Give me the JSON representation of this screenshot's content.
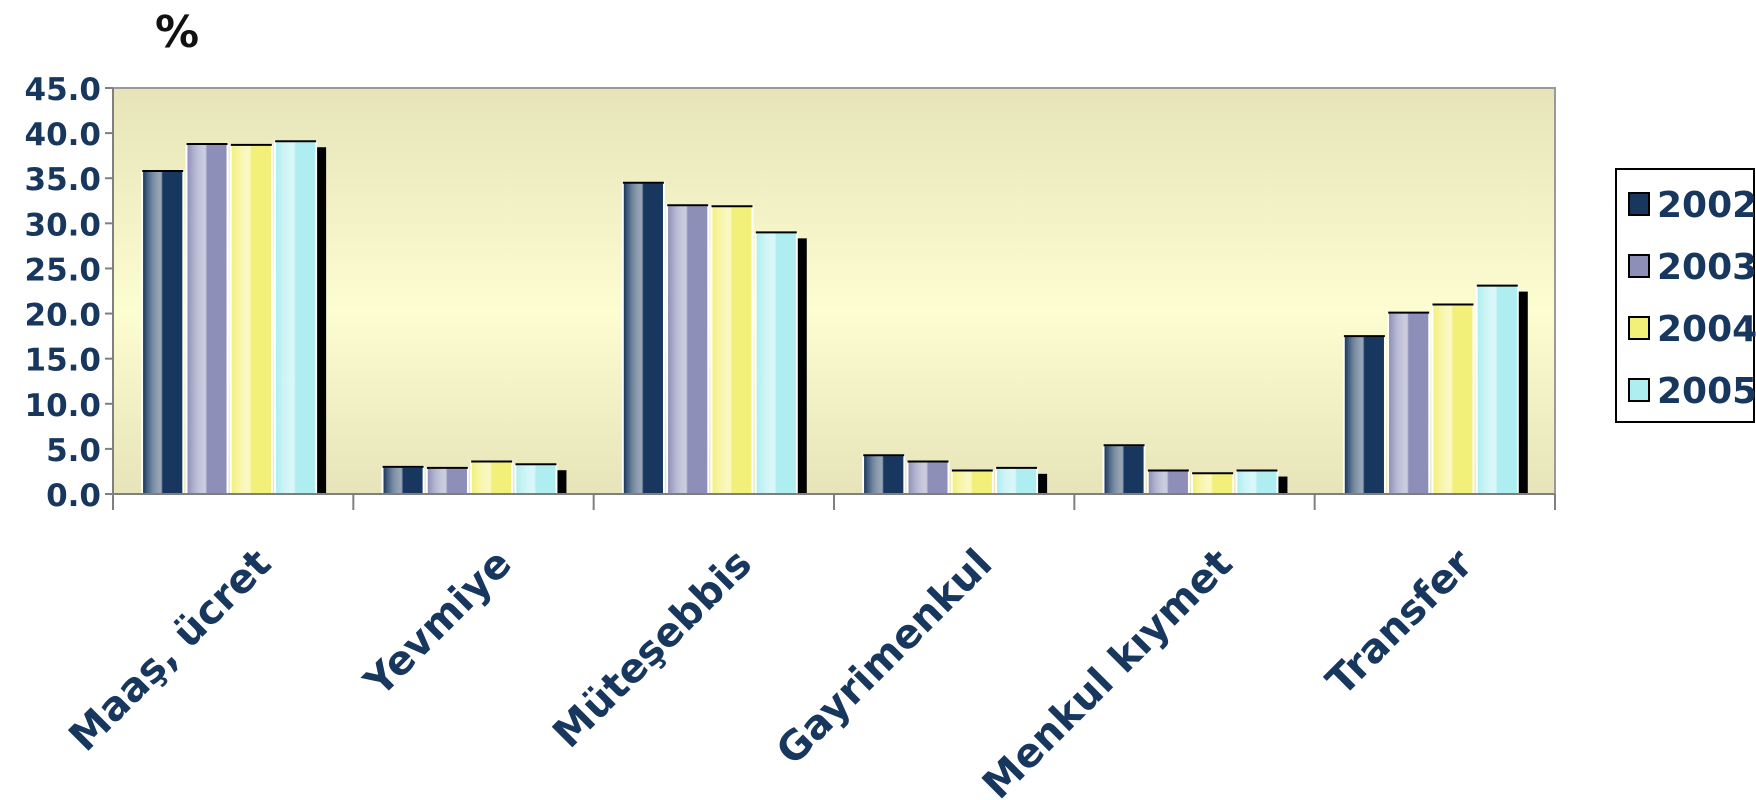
{
  "chart_data": {
    "type": "bar",
    "title": "",
    "ylabel": "%",
    "xlabel": "",
    "ylim": [
      0,
      45
    ],
    "yticks": [
      "0.0",
      "5.0",
      "10.0",
      "15.0",
      "20.0",
      "25.0",
      "30.0",
      "35.0",
      "40.0",
      "45.0"
    ],
    "categories": [
      "Maaş, ücret",
      "Yevmiye",
      "Müteşebbis",
      "Gayrimenkul",
      "Menkul kıymet",
      "Transfer"
    ],
    "series": [
      {
        "name": "2002",
        "color": "#17375e",
        "values": [
          35.8,
          3.0,
          34.5,
          4.3,
          5.4,
          17.5
        ]
      },
      {
        "name": "2003",
        "color": "#8d8fb8",
        "values": [
          38.8,
          2.9,
          32.0,
          3.6,
          2.6,
          20.1
        ]
      },
      {
        "name": "2004",
        "color": "#f3f07a",
        "values": [
          38.7,
          3.6,
          31.9,
          2.6,
          2.3,
          21.0
        ]
      },
      {
        "name": "2005",
        "color": "#aeeef0",
        "values": [
          39.1,
          3.3,
          29.0,
          2.9,
          2.6,
          23.1
        ]
      }
    ],
    "grid": false,
    "legend_position": "right"
  }
}
